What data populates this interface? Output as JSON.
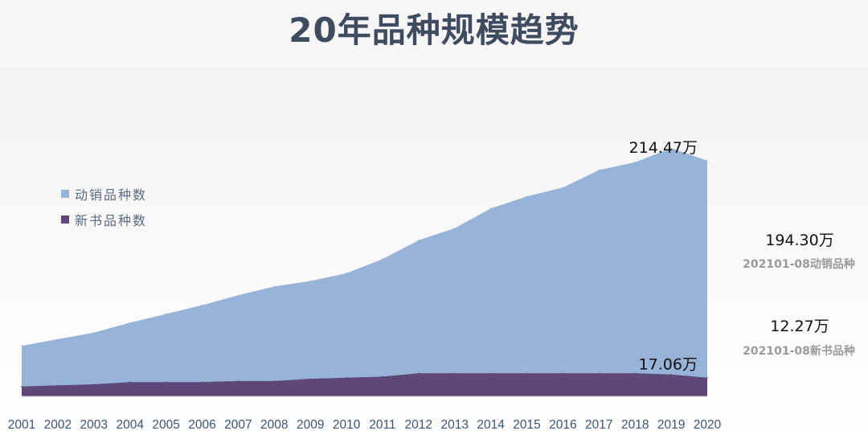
{
  "header": {
    "title": "20年品种规模趋势"
  },
  "legend": {
    "items": [
      {
        "label": "动销品种数",
        "color": "#97b3d8"
      },
      {
        "label": "新书品种数",
        "color": "#5e4878"
      }
    ]
  },
  "side_stats": {
    "active_value": "194.30万",
    "active_label": "202101-08动销品种",
    "new_value": "12.27万",
    "new_label": "202101-08新书品种"
  },
  "chart_data": {
    "type": "area",
    "x": [
      "2001",
      "2002",
      "2003",
      "2004",
      "2005",
      "2006",
      "2007",
      "2008",
      "2009",
      "2010",
      "2011",
      "2012",
      "2013",
      "2014",
      "2015",
      "2016",
      "2017",
      "2018",
      "2019",
      "2020"
    ],
    "series": [
      {
        "name": "动销品种数",
        "color": "#97b3d8",
        "values": [
          46,
          52,
          58,
          67,
          75,
          83,
          92,
          100,
          105,
          112,
          125,
          142,
          153,
          171,
          182,
          190,
          206,
          213,
          226,
          214.47
        ]
      },
      {
        "name": "新书品种数",
        "color": "#5e4878",
        "values": [
          9,
          10,
          11,
          13,
          13,
          13,
          14,
          14,
          16,
          17,
          18,
          21,
          21,
          21,
          21,
          21,
          21,
          21,
          20,
          17.06
        ]
      }
    ],
    "ylim": [
      0,
      240
    ],
    "annotations": [
      {
        "series": 0,
        "x": "2020",
        "label": "214.47万"
      },
      {
        "series": 1,
        "x": "2020",
        "label": "17.06万"
      }
    ]
  }
}
